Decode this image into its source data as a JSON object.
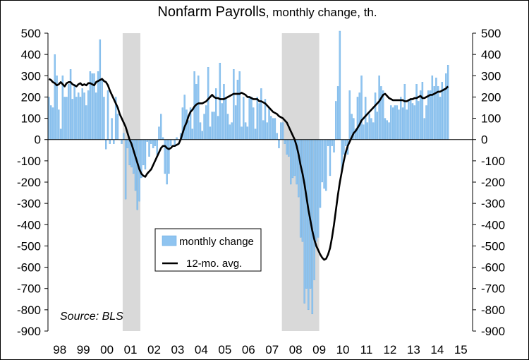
{
  "chart_data": {
    "type": "bar",
    "title_main": "Nonfarm Payrolls",
    "title_rest": ", monthly change, th.",
    "source": "Source: BLS",
    "ylim": [
      -900,
      500
    ],
    "y_ticks": [
      500,
      400,
      300,
      200,
      100,
      0,
      -100,
      -200,
      -300,
      -400,
      -500,
      -600,
      -700,
      -800,
      -900
    ],
    "x_tick_labels": [
      "98",
      "99",
      "00",
      "01",
      "02",
      "03",
      "04",
      "05",
      "06",
      "07",
      "08",
      "09",
      "10",
      "11",
      "12",
      "13",
      "14",
      "15"
    ],
    "x_start_year": 1998,
    "recessions": [
      {
        "start": "2001-03",
        "end": "2001-11"
      },
      {
        "start": "2007-12",
        "end": "2009-06"
      }
    ],
    "legend": {
      "bar_label": "monthly change",
      "line_label": "12-mo. avg."
    },
    "colors": {
      "bars": "#8fc4f0",
      "bar_edge": "#5ea6e0",
      "line": "#000000",
      "recession": "#d9d9d9"
    },
    "series": [
      {
        "name": "monthly change",
        "type": "bar",
        "start": "1998-01",
        "values": [
          200,
          160,
          150,
          400,
          300,
          140,
          50,
          300,
          200,
          200,
          260,
          330,
          190,
          260,
          200,
          220,
          200,
          240,
          220,
          160,
          230,
          320,
          310,
          310,
          220,
          320,
          470,
          280,
          200,
          -45,
          230,
          -20,
          100,
          -20,
          200,
          120,
          0,
          -20,
          30,
          -280,
          -40,
          -120,
          -130,
          -160,
          -240,
          -330,
          -290,
          -180,
          -120,
          -140,
          -10,
          -80,
          -20,
          -40,
          -30,
          -70,
          60,
          120,
          10,
          -160,
          -210,
          -160,
          -30,
          0,
          -30,
          10,
          0,
          30,
          150,
          210,
          140,
          90,
          150,
          50,
          320,
          260,
          300,
          80,
          40,
          120,
          160,
          340,
          60,
          130,
          130,
          240,
          110,
          360,
          170,
          260,
          190,
          120,
          70,
          80,
          330,
          160,
          280,
          320,
          60,
          200,
          80,
          60,
          200,
          200,
          150,
          50,
          200,
          170,
          240,
          90,
          190,
          80,
          150,
          110,
          100,
          100,
          30,
          -40,
          80,
          80,
          -20,
          -70,
          -80,
          -210,
          -180,
          -170,
          -210,
          -270,
          -460,
          -480,
          -770,
          -700,
          -800,
          -700,
          -820,
          -660,
          -480,
          -460,
          -320,
          -200,
          -230,
          -240,
          -30,
          -170,
          -30,
          -60,
          180,
          250,
          510,
          -150,
          -70,
          -30,
          -70,
          230,
          120,
          100,
          50,
          200,
          220,
          300,
          70,
          200,
          80,
          120,
          100,
          80,
          220,
          130,
          300,
          250,
          230,
          100,
          90,
          80,
          160,
          150,
          160,
          160,
          140,
          200,
          150,
          260,
          140,
          180,
          190,
          170,
          160,
          260,
          180,
          230,
          270,
          100,
          160,
          230,
          230,
          300,
          250,
          290,
          250,
          200,
          270,
          240,
          310,
          350
        ]
      },
      {
        "name": "12-mo. avg.",
        "type": "line",
        "start": "1998-01",
        "values": [
          285,
          280,
          270,
          265,
          255,
          260,
          270,
          260,
          250,
          265,
          270,
          270,
          260,
          255,
          250,
          260,
          265,
          255,
          260,
          255,
          265,
          265,
          260,
          255,
          270,
          275,
          280,
          285,
          275,
          270,
          255,
          230,
          210,
          190,
          170,
          150,
          120,
          100,
          80,
          60,
          30,
          0,
          -20,
          -50,
          -80,
          -110,
          -140,
          -160,
          -170,
          -175,
          -160,
          -150,
          -140,
          -120,
          -100,
          -80,
          -60,
          -40,
          -30,
          -30,
          -40,
          -45,
          -40,
          -30,
          -30,
          -25,
          -20,
          0,
          30,
          60,
          80,
          110,
          130,
          140,
          155,
          165,
          170,
          170,
          170,
          175,
          180,
          190,
          200,
          210,
          200,
          195,
          195,
          190,
          190,
          190,
          195,
          200,
          205,
          210,
          215,
          215,
          215,
          215,
          220,
          215,
          210,
          200,
          200,
          195,
          190,
          190,
          190,
          180,
          180,
          175,
          170,
          160,
          150,
          140,
          130,
          125,
          120,
          110,
          105,
          100,
          90,
          80,
          60,
          40,
          20,
          0,
          -30,
          -70,
          -120,
          -160,
          -210,
          -270,
          -330,
          -380,
          -430,
          -470,
          -500,
          -520,
          -540,
          -555,
          -565,
          -560,
          -540,
          -510,
          -460,
          -400,
          -330,
          -260,
          -200,
          -150,
          -100,
          -60,
          -30,
          -10,
          10,
          30,
          40,
          55,
          70,
          90,
          100,
          110,
          120,
          130,
          140,
          150,
          160,
          170,
          180,
          195,
          210,
          215,
          205,
          195,
          190,
          185,
          185,
          185,
          185,
          185,
          185,
          180,
          180,
          185,
          190,
          190,
          195,
          195,
          200,
          205,
          195,
          195,
          200,
          205,
          210,
          210,
          215,
          220,
          225,
          225,
          230,
          235,
          240,
          250
        ]
      }
    ]
  }
}
